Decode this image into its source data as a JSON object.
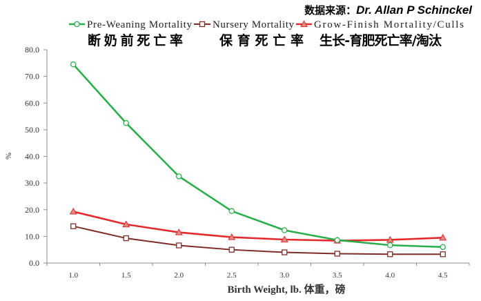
{
  "source": {
    "label": "数据来源：",
    "name": "Dr. Allan P Schinckel"
  },
  "chart_data": {
    "type": "line",
    "categories": [
      "1.0",
      "1.5",
      "2.0",
      "2.5",
      "3.0",
      "3.5",
      "4.0",
      "4.5"
    ],
    "xlabel": "Birth Weight, lb. 体重，磅",
    "ylabel": "%",
    "ylim": [
      0,
      80
    ],
    "yticks": [
      "0.0",
      "10.0",
      "20.0",
      "30.0",
      "40.0",
      "50.0",
      "60.0",
      "70.0",
      "80.0"
    ],
    "grid": false,
    "legend": "top",
    "axis_color": "#8c8c8c",
    "series": [
      {
        "name": "Pre-Weaning Mortality",
        "label_cn": "断奶前死亡率",
        "color": "#2aae4a",
        "marker": "circle",
        "marker_fill": "#ffffff",
        "values": [
          74.5,
          52.5,
          32.5,
          19.5,
          12.3,
          8.6,
          6.7,
          6.0
        ]
      },
      {
        "name": "Nursery Mortality",
        "label_cn": "保育死亡率",
        "color": "#7f2b25",
        "marker": "square",
        "marker_fill": "#ffffff",
        "values": [
          13.8,
          9.3,
          6.6,
          5.0,
          4.0,
          3.5,
          3.3,
          3.3
        ]
      },
      {
        "name": "Grow-Finish Mortality/Culls",
        "label_cn": "生长-育肥死亡率/淘汰",
        "color": "#e52a2e",
        "marker": "triangle",
        "marker_fill": "#d98f80",
        "values": [
          19.3,
          14.5,
          11.5,
          9.7,
          8.8,
          8.4,
          8.7,
          9.5
        ]
      }
    ]
  }
}
